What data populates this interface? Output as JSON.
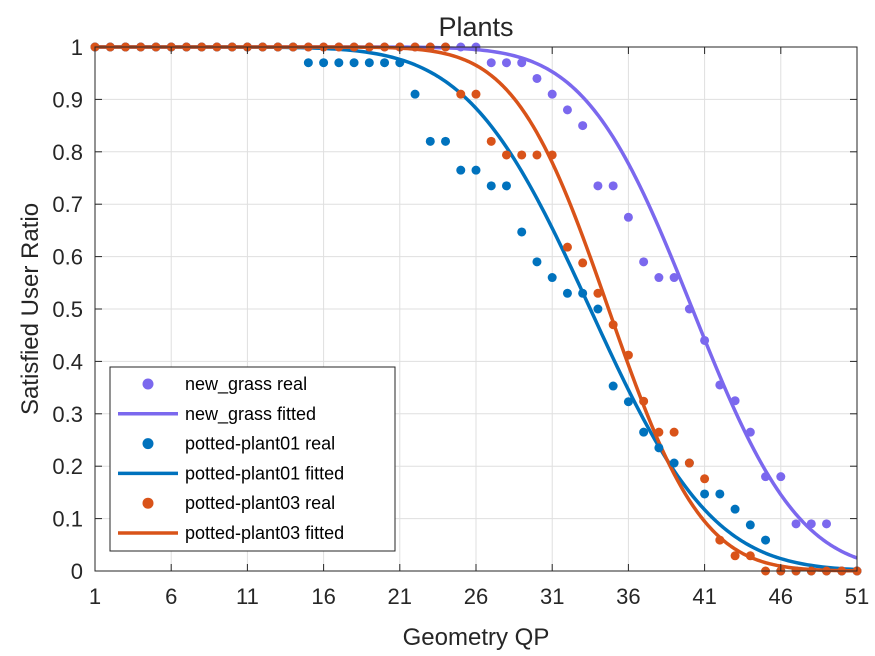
{
  "chart_data": {
    "type": "scatter",
    "title": "Plants",
    "xlabel": "Geometry QP",
    "ylabel": "Satisfied User Ratio",
    "xlim": [
      1,
      51
    ],
    "ylim": [
      0,
      1
    ],
    "xticks": [
      1,
      6,
      11,
      16,
      21,
      26,
      31,
      36,
      41,
      46,
      51
    ],
    "yticks": [
      0,
      0.1,
      0.2,
      0.3,
      0.4,
      0.5,
      0.6,
      0.7,
      0.8,
      0.9,
      1
    ],
    "ytick_labels": [
      "0",
      "0.1",
      "0.2",
      "0.3",
      "0.4",
      "0.5",
      "0.6",
      "0.7",
      "0.8",
      "0.9",
      "1"
    ],
    "grid": true,
    "legend_position": "bottom-left",
    "series": [
      {
        "name": "new_grass",
        "color": "#7B68EE",
        "real_label": "new_grass real",
        "fitted_label": "new_grass fitted",
        "fit": {
          "mu": 40.2,
          "sigma": 5.5
        },
        "x": [
          1,
          2,
          3,
          4,
          5,
          6,
          7,
          8,
          9,
          10,
          11,
          12,
          13,
          14,
          15,
          16,
          17,
          18,
          19,
          20,
          21,
          22,
          23,
          24,
          25,
          26,
          27,
          28,
          29,
          30,
          31,
          32,
          33,
          34,
          35,
          36,
          37,
          38,
          39,
          40,
          41,
          42,
          43,
          44,
          45,
          46,
          47,
          48,
          49,
          50,
          51
        ],
        "y": [
          1,
          1,
          1,
          1,
          1,
          1,
          1,
          1,
          1,
          1,
          1,
          1,
          1,
          1,
          1,
          1,
          1,
          1,
          1,
          1,
          1,
          1,
          1,
          1,
          1,
          1,
          0.97,
          0.97,
          0.97,
          0.94,
          0.91,
          0.88,
          0.85,
          0.735,
          0.735,
          0.675,
          0.59,
          0.56,
          0.56,
          0.5,
          0.44,
          0.355,
          0.325,
          0.265,
          0.18,
          0.18,
          0.09,
          0.09,
          0.09,
          0,
          0
        ]
      },
      {
        "name": "potted-plant01",
        "color": "#0072BD",
        "real_label": "potted-plant01 real",
        "fitted_label": "potted-plant01 fitted",
        "fit": {
          "mu": 33.5,
          "sigma": 6.3
        },
        "x": [
          1,
          2,
          3,
          4,
          5,
          6,
          7,
          8,
          9,
          10,
          11,
          12,
          13,
          14,
          15,
          16,
          17,
          18,
          19,
          20,
          21,
          22,
          23,
          24,
          25,
          26,
          27,
          28,
          29,
          30,
          31,
          32,
          33,
          34,
          35,
          36,
          37,
          38,
          39,
          40,
          41,
          42,
          43,
          44,
          45,
          46,
          47,
          48,
          49,
          50,
          51
        ],
        "y": [
          1,
          1,
          1,
          1,
          1,
          1,
          1,
          1,
          1,
          1,
          1,
          1,
          1,
          1,
          0.97,
          0.97,
          0.97,
          0.97,
          0.97,
          0.97,
          0.97,
          0.91,
          0.82,
          0.82,
          0.765,
          0.765,
          0.735,
          0.735,
          0.647,
          0.59,
          0.56,
          0.53,
          0.53,
          0.5,
          0.353,
          0.323,
          0.265,
          0.235,
          0.206,
          0.206,
          0.147,
          0.147,
          0.118,
          0.088,
          0.059,
          0,
          0,
          0,
          0,
          0,
          0
        ]
      },
      {
        "name": "potted-plant03",
        "color": "#D95319",
        "real_label": "potted-plant03 real",
        "fitted_label": "potted-plant03 fitted",
        "fit": {
          "mu": 34.7,
          "sigma": 4.8
        },
        "x": [
          1,
          2,
          3,
          4,
          5,
          6,
          7,
          8,
          9,
          10,
          11,
          12,
          13,
          14,
          15,
          16,
          17,
          18,
          19,
          20,
          21,
          22,
          23,
          24,
          25,
          26,
          27,
          28,
          29,
          30,
          31,
          32,
          33,
          34,
          35,
          36,
          37,
          38,
          39,
          40,
          41,
          42,
          43,
          44,
          45,
          46,
          47,
          48,
          49,
          50,
          51
        ],
        "y": [
          1,
          1,
          1,
          1,
          1,
          1,
          1,
          1,
          1,
          1,
          1,
          1,
          1,
          1,
          1,
          1,
          1,
          1,
          1,
          1,
          1,
          1,
          1,
          1,
          0.91,
          0.91,
          0.82,
          0.794,
          0.794,
          0.794,
          0.794,
          0.618,
          0.588,
          0.53,
          0.47,
          0.412,
          0.324,
          0.265,
          0.265,
          0.206,
          0.176,
          0.059,
          0.029,
          0.029,
          0,
          0,
          0,
          0,
          0,
          0,
          0
        ]
      }
    ]
  }
}
